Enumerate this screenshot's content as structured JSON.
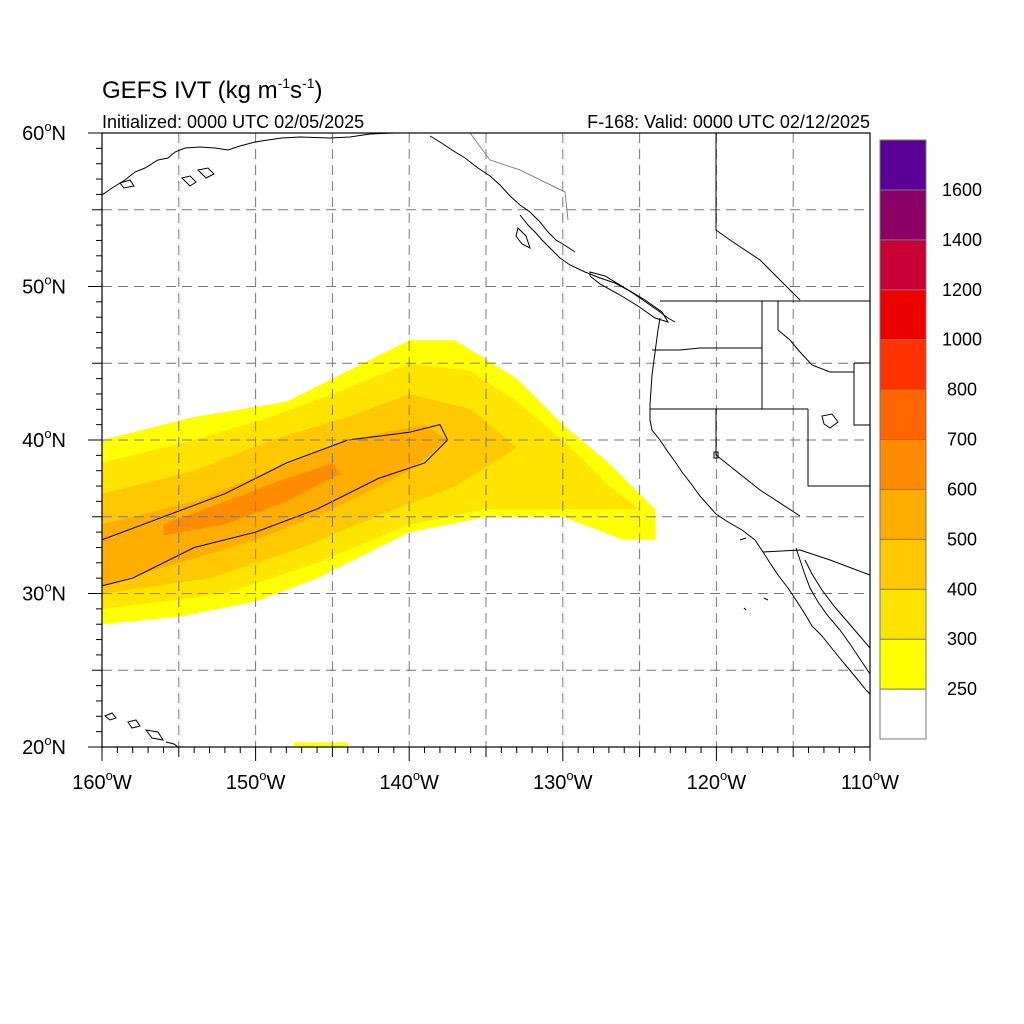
{
  "header": {
    "title_main": "GEFS IVT (kg m",
    "title_sup1": "-1",
    "title_s": "s",
    "title_sup2": "-1",
    "title_close": ")",
    "initialized": "Initialized: 0000 UTC 02/05/2025",
    "valid": "F-168: Valid: 0000 UTC 02/12/2025"
  },
  "map": {
    "lon_range": [
      -160,
      -110
    ],
    "lat_range": [
      20,
      60
    ],
    "lon_ticks": [
      {
        "value": -160,
        "label": "160"
      },
      {
        "value": -150,
        "label": "150"
      },
      {
        "value": -140,
        "label": "140"
      },
      {
        "value": -130,
        "label": "130"
      },
      {
        "value": -120,
        "label": "120"
      },
      {
        "value": -110,
        "label": "110"
      }
    ],
    "lat_ticks": [
      {
        "value": 60,
        "label": "60"
      },
      {
        "value": 50,
        "label": "50"
      },
      {
        "value": 40,
        "label": "40"
      },
      {
        "value": 30,
        "label": "30"
      },
      {
        "value": 20,
        "label": "20"
      }
    ],
    "lon_suffix": "W",
    "lat_suffix": "N",
    "degree_symbol": "o",
    "gridlines": "dashed",
    "ivt_field": {
      "description_levels": "shaded IVT",
      "band_250": [
        {
          "lon": -160,
          "lat": 40.0
        },
        {
          "lon": -154,
          "lat": 41.5
        },
        {
          "lon": -148,
          "lat": 42.5
        },
        {
          "lon": -144,
          "lat": 44.5
        },
        {
          "lon": -140,
          "lat": 46.5
        },
        {
          "lon": -137,
          "lat": 46.5
        },
        {
          "lon": -133,
          "lat": 44.0
        },
        {
          "lon": -130,
          "lat": 41.0
        },
        {
          "lon": -127,
          "lat": 38.5
        },
        {
          "lon": -124,
          "lat": 35.5
        },
        {
          "lon": -124,
          "lat": 33.5
        },
        {
          "lon": -126,
          "lat": 33.5
        },
        {
          "lon": -130,
          "lat": 35.0
        },
        {
          "lon": -135,
          "lat": 35.0
        },
        {
          "lon": -140,
          "lat": 34.0
        },
        {
          "lon": -146,
          "lat": 31.0
        },
        {
          "lon": -150,
          "lat": 29.5
        },
        {
          "lon": -155,
          "lat": 28.5
        },
        {
          "lon": -160,
          "lat": 28.0
        }
      ],
      "band_300": [
        {
          "lon": -160,
          "lat": 38.5
        },
        {
          "lon": -154,
          "lat": 40.0
        },
        {
          "lon": -149,
          "lat": 41.5
        },
        {
          "lon": -145,
          "lat": 43.0
        },
        {
          "lon": -140,
          "lat": 45.0
        },
        {
          "lon": -136,
          "lat": 44.5
        },
        {
          "lon": -133,
          "lat": 42.5
        },
        {
          "lon": -130,
          "lat": 40.0
        },
        {
          "lon": -127,
          "lat": 37.0
        },
        {
          "lon": -125,
          "lat": 35.5
        },
        {
          "lon": -130,
          "lat": 35.5
        },
        {
          "lon": -135,
          "lat": 35.5
        },
        {
          "lon": -140,
          "lat": 34.5
        },
        {
          "lon": -146,
          "lat": 32.0
        },
        {
          "lon": -152,
          "lat": 30.0
        },
        {
          "lon": -160,
          "lat": 29.0
        }
      ],
      "band_400": [
        {
          "lon": -160,
          "lat": 36.5
        },
        {
          "lon": -154,
          "lat": 38.0
        },
        {
          "lon": -149,
          "lat": 40.0
        },
        {
          "lon": -144,
          "lat": 41.5
        },
        {
          "lon": -140,
          "lat": 43.0
        },
        {
          "lon": -136,
          "lat": 42.0
        },
        {
          "lon": -133,
          "lat": 39.5
        },
        {
          "lon": -137,
          "lat": 37.0
        },
        {
          "lon": -141,
          "lat": 35.5
        },
        {
          "lon": -147,
          "lat": 33.0
        },
        {
          "lon": -153,
          "lat": 31.0
        },
        {
          "lon": -160,
          "lat": 30.0
        }
      ],
      "band_500": [
        {
          "lon": -160,
          "lat": 34.5
        },
        {
          "lon": -154,
          "lat": 36.0
        },
        {
          "lon": -149,
          "lat": 38.0
        },
        {
          "lon": -144,
          "lat": 40.0
        },
        {
          "lon": -139,
          "lat": 41.0
        },
        {
          "lon": -137.5,
          "lat": 40.0
        },
        {
          "lon": -140,
          "lat": 38.0
        },
        {
          "lon": -145,
          "lat": 35.5
        },
        {
          "lon": -150,
          "lat": 33.5
        },
        {
          "lon": -155,
          "lat": 32.0
        },
        {
          "lon": -160,
          "lat": 30.5
        }
      ],
      "band_600": [
        {
          "lon": -156,
          "lat": 34.5
        },
        {
          "lon": -152,
          "lat": 36.0
        },
        {
          "lon": -148,
          "lat": 37.5
        },
        {
          "lon": -145,
          "lat": 38.5
        },
        {
          "lon": -144.5,
          "lat": 37.8
        },
        {
          "lon": -148,
          "lat": 36.0
        },
        {
          "lon": -152,
          "lat": 34.5
        },
        {
          "lon": -156,
          "lat": 33.8
        }
      ],
      "contour_500": [
        {
          "lon": -160,
          "lat": 33.5
        },
        {
          "lon": -156,
          "lat": 35.0
        },
        {
          "lon": -152,
          "lat": 36.5
        },
        {
          "lon": -148,
          "lat": 38.5
        },
        {
          "lon": -144,
          "lat": 40.0
        },
        {
          "lon": -140,
          "lat": 40.5
        },
        {
          "lon": -138,
          "lat": 41.0
        },
        {
          "lon": -137.5,
          "lat": 40.0
        },
        {
          "lon": -139,
          "lat": 38.5
        },
        {
          "lon": -142,
          "lat": 37.5
        },
        {
          "lon": -146,
          "lat": 35.5
        },
        {
          "lon": -150,
          "lat": 34.0
        },
        {
          "lon": -154,
          "lat": 33.0
        },
        {
          "lon": -158,
          "lat": 31.0
        },
        {
          "lon": -160,
          "lat": 30.5
        }
      ],
      "patch_south": [
        {
          "lon": -147.5,
          "lat": 20.3
        },
        {
          "lon": -144,
          "lat": 20.3
        },
        {
          "lon": -144,
          "lat": 19.9
        },
        {
          "lon": -147.5,
          "lat": 19.9
        }
      ]
    }
  },
  "colorbar": {
    "levels": [
      "250",
      "300",
      "400",
      "500",
      "600",
      "700",
      "800",
      "1000",
      "1200",
      "1400",
      "1600"
    ],
    "colors": [
      "#ffffff",
      "#ffff00",
      "#ffe400",
      "#ffc800",
      "#ffad00",
      "#ff8c00",
      "#ff6600",
      "#ff3300",
      "#ee0000",
      "#c80037",
      "#8b0067",
      "#5b0096"
    ]
  }
}
